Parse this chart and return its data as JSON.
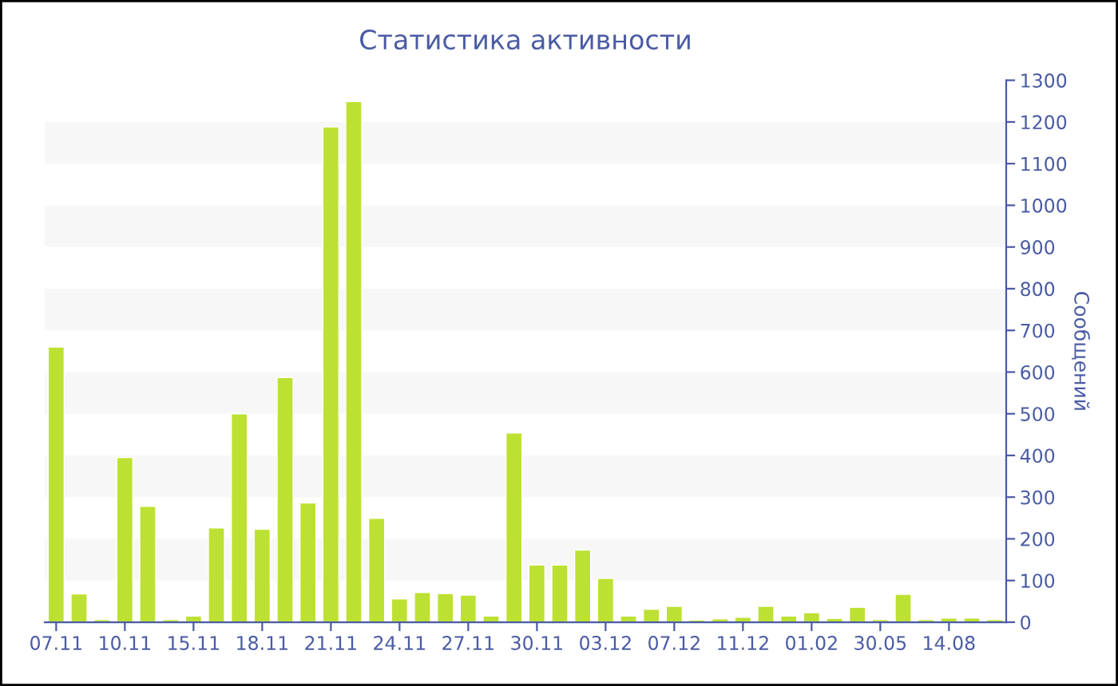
{
  "chart_data": {
    "type": "bar",
    "title": "Статистика активности",
    "ylabel": "Сообщений",
    "categories": [
      "07.11",
      null,
      null,
      "10.11",
      null,
      null,
      "15.11",
      null,
      null,
      "18.11",
      null,
      null,
      "21.11",
      null,
      null,
      "24.11",
      null,
      null,
      "27.11",
      null,
      null,
      "30.11",
      null,
      null,
      "03.12",
      null,
      null,
      "07.12",
      null,
      null,
      "11.12",
      null,
      null,
      "01.02",
      null,
      null,
      "30.05",
      null,
      null,
      "14.08",
      null,
      null
    ],
    "values": [
      660,
      68,
      6,
      395,
      278,
      6,
      15,
      226,
      500,
      223,
      587,
      286,
      1188,
      1249,
      249,
      56,
      71,
      69,
      65,
      15,
      454,
      137,
      137,
      173,
      105,
      15,
      31,
      38,
      5,
      8,
      12,
      38,
      15,
      23,
      9,
      36,
      6,
      67,
      6,
      10,
      10,
      6
    ],
    "color": "#bde132",
    "ylim": [
      0,
      1300
    ],
    "yticks": [
      0,
      100,
      200,
      300,
      400,
      500,
      600,
      700,
      800,
      900,
      1000,
      1100,
      1200,
      1300
    ],
    "bands": [
      {
        "axis": "y",
        "from": 100,
        "to": 200,
        "color": "#f7f7f7"
      },
      {
        "axis": "y",
        "from": 300,
        "to": 400,
        "color": "#f7f7f7"
      },
      {
        "axis": "y",
        "from": 500,
        "to": 600,
        "color": "#f7f7f7"
      },
      {
        "axis": "y",
        "from": 700,
        "to": 800,
        "color": "#f7f7f7"
      },
      {
        "axis": "y",
        "from": 900,
        "to": 1000,
        "color": "#f7f7f7"
      },
      {
        "axis": "y",
        "from": 1100,
        "to": 1200,
        "color": "#f7f7f7"
      }
    ],
    "grid": false,
    "legend": false
  }
}
